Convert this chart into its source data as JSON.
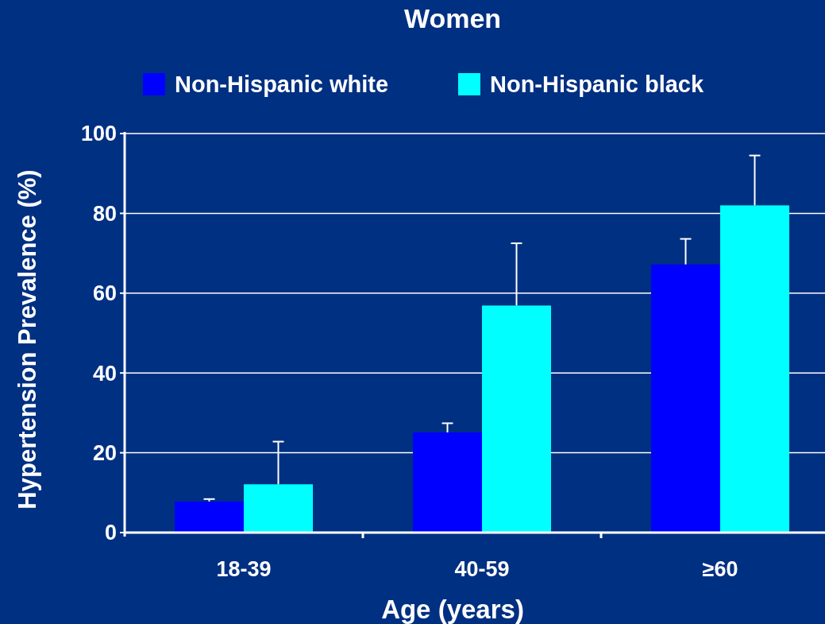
{
  "chart_data": {
    "type": "bar",
    "title": "Women",
    "xlabel": "Age (years)",
    "ylabel": "Hypertension Prevalence (%)",
    "categories": [
      "18-39",
      "40-59",
      "≥60"
    ],
    "series": [
      {
        "name": "Non-Hispanic white",
        "color": "#0000ff",
        "values": [
          7.8,
          25.1,
          67.2
        ],
        "errors": [
          [
            7.8,
            8.4
          ],
          [
            25.1,
            27.4
          ],
          [
            67.2,
            73.6
          ]
        ]
      },
      {
        "name": "Non-Hispanic black",
        "color": "#00ffff",
        "values": [
          12.1,
          56.9,
          82.0
        ],
        "errors": [
          [
            12.1,
            22.8
          ],
          [
            56.9,
            72.5
          ],
          [
            82.0,
            94.5
          ]
        ]
      }
    ],
    "ylim": [
      0,
      100
    ],
    "yticks": [
      0,
      20,
      40,
      60,
      80,
      100
    ],
    "grid": "y",
    "legend": "top"
  }
}
